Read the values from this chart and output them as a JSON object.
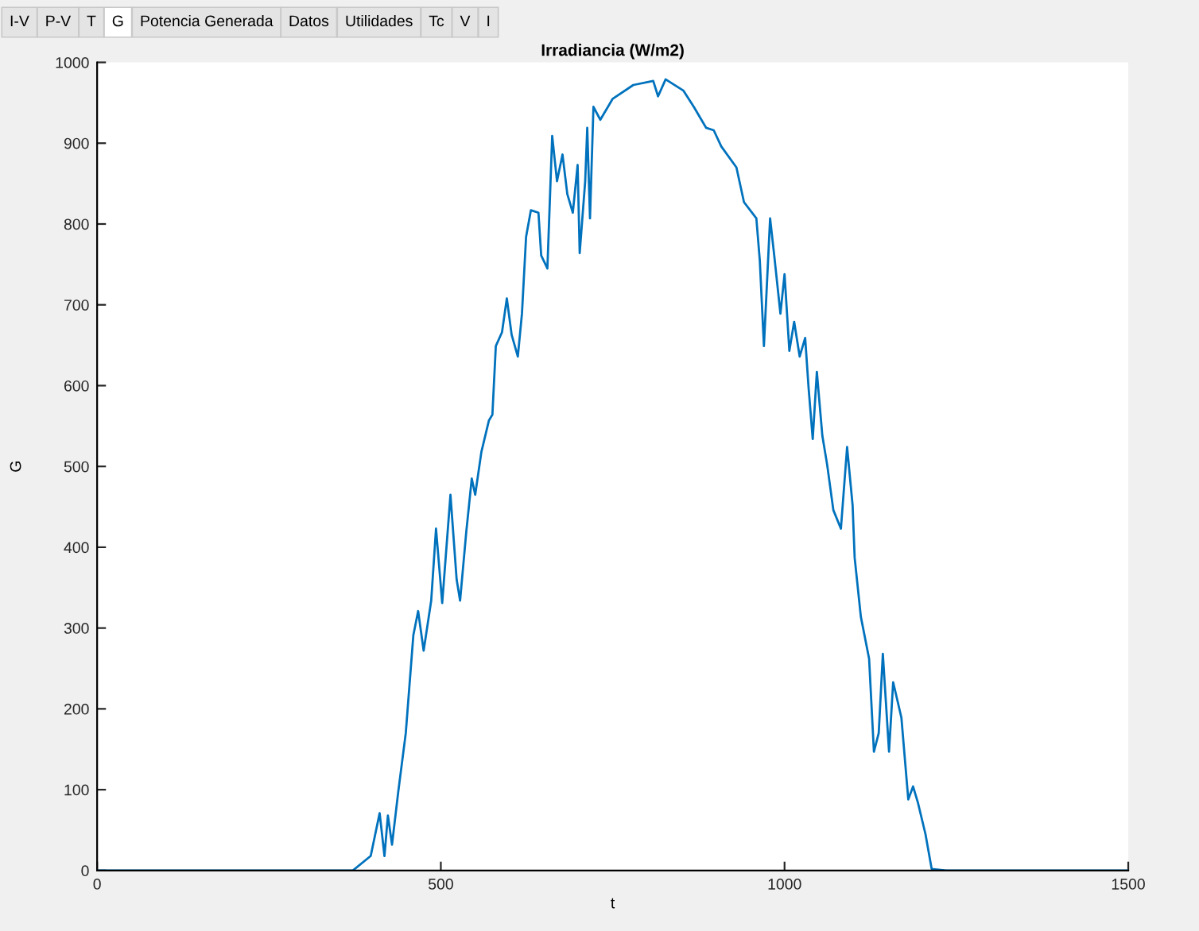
{
  "chart_data": {
    "type": "line",
    "title": "Irradiancia (W/m2)",
    "xlabel": "t",
    "ylabel": "G",
    "annotations": [
      "I-V",
      "P-V",
      "T",
      "G",
      "Potencia Generada",
      "Datos",
      "Utilidades",
      "Tc",
      "V",
      "I"
    ],
    "xlim": [
      0,
      1500
    ],
    "xticks": [
      0,
      500,
      1000,
      1500
    ],
    "ylim": [
      0,
      1000
    ],
    "yticks": [
      0,
      100,
      200,
      300,
      400,
      500,
      600,
      700,
      800,
      900,
      1000
    ],
    "grid": false,
    "legend": false,
    "marker": "none",
    "line_style": "solid",
    "series": [
      {
        "color": "#0072bd",
        "x": [
          0,
          372,
          398,
          411,
          418,
          423,
          429,
          438,
          449,
          460,
          467,
          475,
          486,
          493,
          502,
          514,
          523,
          528,
          537,
          545,
          550,
          559,
          570,
          575,
          580,
          589,
          596,
          603,
          612,
          618,
          624,
          631,
          642,
          646,
          655,
          662,
          669,
          677,
          684,
          692,
          699,
          702,
          710,
          713,
          717,
          722,
          732,
          750,
          780,
          809,
          816,
          827,
          853,
          868,
          886,
          897,
          908,
          930,
          941,
          959,
          964,
          970,
          979,
          985,
          994,
          1000,
          1007,
          1014,
          1022,
          1030,
          1035,
          1041,
          1047,
          1055,
          1062,
          1071,
          1082,
          1091,
          1099,
          1102,
          1111,
          1123,
          1130,
          1137,
          1143,
          1152,
          1158,
          1170,
          1180,
          1187,
          1194,
          1205,
          1214,
          1235,
          1500
        ],
        "values": [
          0,
          0,
          18,
          71,
          18,
          68,
          32,
          97,
          170,
          291,
          321,
          272,
          334,
          423,
          331,
          465,
          360,
          334,
          419,
          485,
          465,
          518,
          557,
          564,
          649,
          666,
          708,
          663,
          636,
          689,
          784,
          817,
          814,
          761,
          745,
          909,
          853,
          886,
          837,
          814,
          873,
          764,
          853,
          919,
          807,
          945,
          929,
          955,
          972,
          977,
          958,
          979,
          965,
          945,
          919,
          916,
          896,
          870,
          827,
          807,
          755,
          649,
          807,
          761,
          689,
          738,
          643,
          679,
          636,
          659,
          597,
          534,
          617,
          538,
          502,
          446,
          423,
          524,
          452,
          387,
          314,
          262,
          147,
          170,
          268,
          147,
          233,
          189,
          88,
          104,
          84,
          45,
          2,
          0,
          0
        ]
      }
    ]
  }
}
